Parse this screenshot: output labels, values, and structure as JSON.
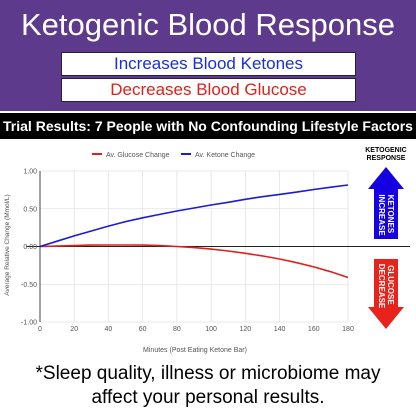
{
  "header": {
    "title": "Ketogenic Blood Response",
    "pill_ketones": "Increases Blood Ketones",
    "pill_glucose": "Decreases Blood Glucose",
    "background_color": "#5e3a8c"
  },
  "banner": "Trial Results: 7 People with No Confounding Lifestyle Factors",
  "side_panel": {
    "heading_line1": "KETOGENIC",
    "heading_line2": "RESPONSE",
    "up_arrow_line1": "KETONES",
    "up_arrow_line2": "INCREASE",
    "down_arrow_line1": "GLUCOSE",
    "down_arrow_line2": "DECREASE",
    "up_color": "#1400e0",
    "down_color": "#e8231c"
  },
  "chart_data": {
    "type": "line",
    "title": "",
    "xlabel": "Minutes (Post Eating Ketone Bar)",
    "ylabel": "Average Relative Change (Mmol/L)",
    "xlim": [
      0,
      180
    ],
    "ylim": [
      -1.0,
      1.0
    ],
    "xticks": [
      "0",
      "20",
      "40",
      "60",
      "80",
      "100",
      "120",
      "140",
      "160",
      "180"
    ],
    "yticks": [
      "1.00",
      "0.50",
      "0.00",
      "-0.50",
      "-1.00"
    ],
    "grid": true,
    "legend_position": "top",
    "x": [
      0,
      10,
      20,
      30,
      40,
      50,
      60,
      70,
      80,
      90,
      100,
      110,
      120,
      130,
      140,
      150,
      160,
      170,
      180
    ],
    "series": [
      {
        "name": "Av. Glucose Change",
        "color": "#e0201c",
        "values": [
          0.0,
          0.005,
          0.012,
          0.018,
          0.02,
          0.02,
          0.018,
          0.012,
          0.0,
          -0.015,
          -0.035,
          -0.06,
          -0.09,
          -0.125,
          -0.165,
          -0.215,
          -0.27,
          -0.335,
          -0.41
        ]
      },
      {
        "name": "Av. Ketone Change",
        "color": "#1b1bd6",
        "values": [
          0.0,
          0.07,
          0.14,
          0.205,
          0.27,
          0.33,
          0.38,
          0.425,
          0.47,
          0.51,
          0.55,
          0.585,
          0.625,
          0.66,
          0.69,
          0.72,
          0.755,
          0.785,
          0.815
        ]
      }
    ]
  },
  "footnote": {
    "line1": "*Sleep quality, illness or microbiome may",
    "line2": "affect your personal results."
  }
}
